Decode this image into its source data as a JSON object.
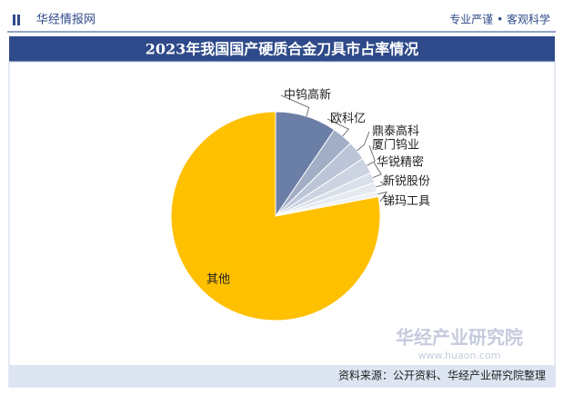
{
  "header": {
    "brand": "华经情报网",
    "slogan": "专业严谨 • 客观科学"
  },
  "chart_data": {
    "type": "pie",
    "title": "2023年我国国产硬质合金刀具市占率情况",
    "categories": [
      "中钨高新",
      "欧科亿",
      "鼎泰高科",
      "厦门钨业",
      "华锐精密",
      "新锐股份",
      "锑玛工具",
      "其他"
    ],
    "values": [
      9.5,
      3.2,
      3.0,
      2.5,
      1.6,
      1.4,
      0.8,
      78.0
    ],
    "colors": [
      "#6b7ea6",
      "#a2aec6",
      "#bcc5d8",
      "#ccd3e1",
      "#dae0ea",
      "#e5e9f0",
      "#eef1f5",
      "#ffc000"
    ]
  },
  "source": "资料来源：公开资料、华经产业研究院整理",
  "watermark": {
    "name": "华经产业研究院",
    "url": "www.huaon.com"
  }
}
